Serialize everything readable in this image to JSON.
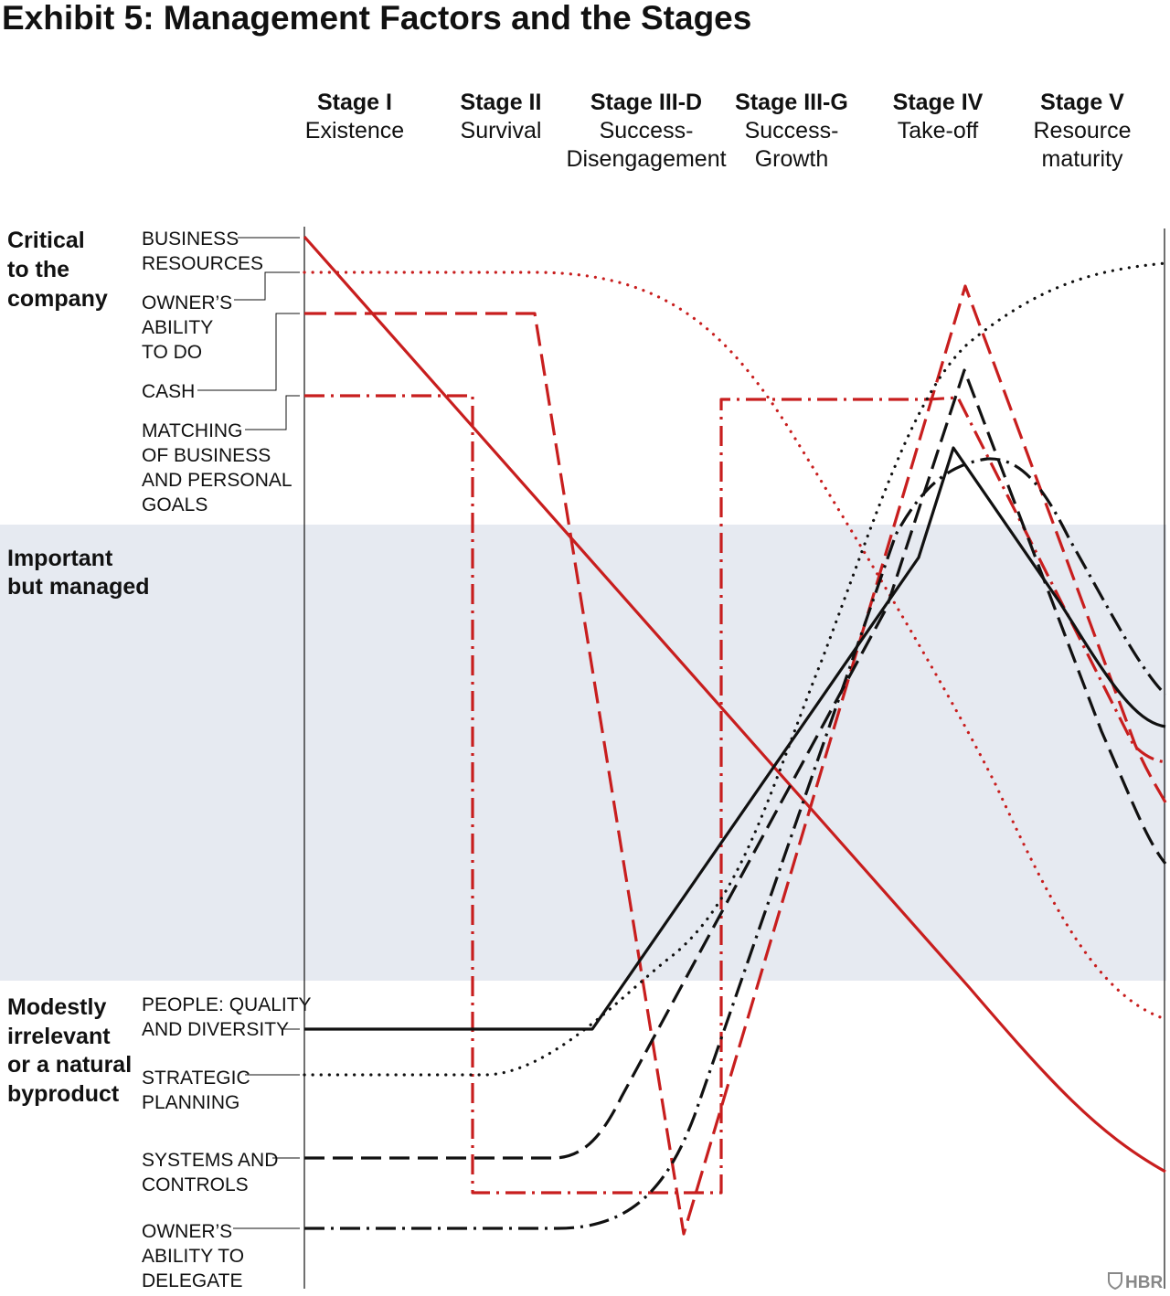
{
  "title": "Exhibit 5: Management Factors and the Stages",
  "brand": "HBR",
  "colors": {
    "red": "#c81e1e",
    "black": "#111111",
    "band": "#e6eaf1"
  },
  "stages": [
    {
      "name": "Stage I",
      "sub": [
        "Existence"
      ]
    },
    {
      "name": "Stage II",
      "sub": [
        "Survival"
      ]
    },
    {
      "name": "Stage III-D",
      "sub": [
        "Success-",
        "Disengagement"
      ]
    },
    {
      "name": "Stage III-G",
      "sub": [
        "Success-",
        "Growth"
      ]
    },
    {
      "name": "Stage IV",
      "sub": [
        "Take-off"
      ]
    },
    {
      "name": "Stage V",
      "sub": [
        "Resource",
        "maturity"
      ]
    }
  ],
  "bands": [
    {
      "id": "critical",
      "lines": [
        "Critical",
        "to the",
        "company"
      ]
    },
    {
      "id": "important",
      "lines": [
        "Important",
        "but managed"
      ]
    },
    {
      "id": "irrelevant",
      "lines": [
        "Modestly",
        "irrelevant",
        "or a natural",
        "byproduct"
      ]
    }
  ],
  "factors": [
    {
      "id": "business-resources",
      "lines": [
        "BUSINESS",
        "RESOURCES"
      ],
      "color": "red",
      "style": "solid"
    },
    {
      "id": "owners-ability-to-do",
      "lines": [
        "OWNER’S",
        "ABILITY",
        "TO DO"
      ],
      "color": "red",
      "style": "dotted"
    },
    {
      "id": "cash",
      "lines": [
        "CASH"
      ],
      "color": "red",
      "style": "dashed"
    },
    {
      "id": "matching-goals",
      "lines": [
        "MATCHING",
        "OF BUSINESS",
        "AND PERSONAL",
        "GOALS"
      ],
      "color": "red",
      "style": "dashdot"
    },
    {
      "id": "people",
      "lines": [
        "PEOPLE: QUALITY",
        "AND DIVERSITY"
      ],
      "color": "black",
      "style": "solid"
    },
    {
      "id": "strategic-planning",
      "lines": [
        "STRATEGIC",
        "PLANNING"
      ],
      "color": "black",
      "style": "dotted"
    },
    {
      "id": "systems-controls",
      "lines": [
        "SYSTEMS AND",
        "CONTROLS"
      ],
      "color": "black",
      "style": "dashed"
    },
    {
      "id": "owners-ability-to-delegate",
      "lines": [
        "OWNER’S",
        "ABILITY TO",
        "DELEGATE"
      ],
      "color": "black",
      "style": "dashdot"
    }
  ]
}
